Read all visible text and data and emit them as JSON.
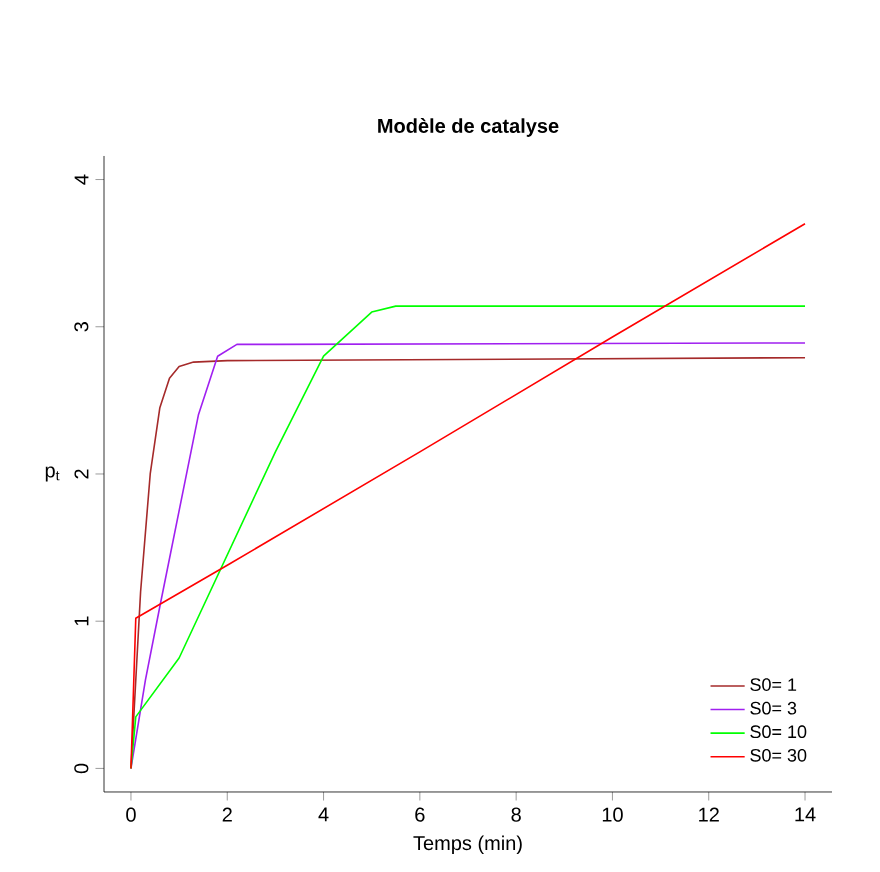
{
  "chart_data": {
    "type": "line",
    "title": "**Modèle de catalyse**",
    "xlabel": "Temps (min)",
    "ylabel": "p$_{t}$",
    "xlim": [
      -0.56,
      14.56
    ],
    "ylim": [
      -0.16,
      4.16
    ],
    "xticks": [
      0,
      2,
      4,
      6,
      8,
      10,
      12,
      14
    ],
    "yticks": [
      0,
      1,
      2,
      3,
      4
    ],
    "legend": "bottom right",
    "grid": false,
    "marker": "none",
    "line_style": "solid",
    "series": [
      {
        "name": "S0= 1",
        "color": "#a52a2a",
        "x": [
          0,
          0.2,
          0.4,
          0.6,
          0.8,
          1.0,
          1.3,
          2,
          14
        ],
        "values": [
          0,
          1.2,
          2.0,
          2.45,
          2.65,
          2.73,
          2.76,
          2.77,
          2.79
        ]
      },
      {
        "name": "S0= 3",
        "color": "#a020f0",
        "x": [
          0,
          0.3,
          0.6,
          1.0,
          1.4,
          1.8,
          2.2,
          3,
          14
        ],
        "values": [
          0,
          0.6,
          1.1,
          1.75,
          2.4,
          2.8,
          2.88,
          2.88,
          2.89
        ]
      },
      {
        "name": "S0= 10",
        "color": "#00ff00",
        "x": [
          0,
          0.1,
          1,
          2,
          3,
          4,
          5,
          5.5,
          6,
          14
        ],
        "values": [
          0,
          0.35,
          0.75,
          1.45,
          2.15,
          2.8,
          3.1,
          3.14,
          3.14,
          3.14
        ]
      },
      {
        "name": "S0= 30",
        "color": "#ff0000",
        "x": [
          0,
          0.1,
          2,
          6,
          10,
          14
        ],
        "values": [
          0,
          1.02,
          1.38,
          2.15,
          2.93,
          3.7
        ]
      }
    ]
  }
}
